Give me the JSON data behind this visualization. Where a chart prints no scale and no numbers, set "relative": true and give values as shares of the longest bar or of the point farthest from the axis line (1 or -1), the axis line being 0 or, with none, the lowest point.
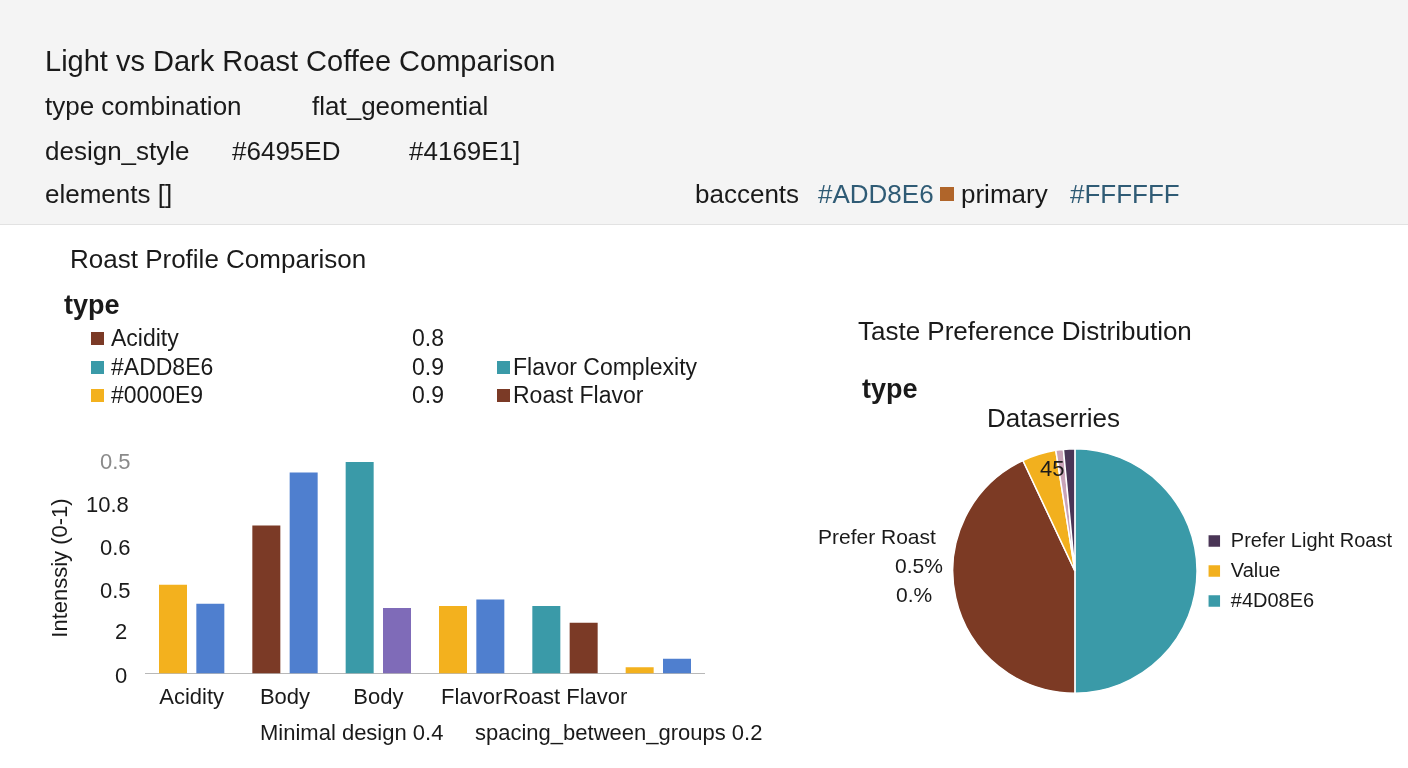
{
  "chart_data": [
    {
      "type": "other",
      "title": "Light vs Dark Roast Coffee Comparison",
      "annotations": [
        "type  combination",
        "flat_geomential",
        "design_style",
        "#6495ED",
        "#4169E1]",
        "elements []",
        "baccents",
        "#ADD8E6",
        "primary",
        "#FFFFFF"
      ]
    },
    {
      "type": "bar",
      "title": "Roast Profile Comparison",
      "ylabel": "Intenssiy (0-1)",
      "categories": [
        "Acidity",
        "Body",
        "Body",
        "Flavor",
        "Roast Flavor",
        null
      ],
      "series": [
        {
          "values": [
            0.42,
            0.7,
            1,
            0.32,
            0.32,
            0.03
          ],
          "colors": [
            "#f3b11e",
            "#7b3a26",
            "#3a9aa8",
            "#f3b11e",
            "#3a9aa8",
            "#f3b11e"
          ]
        },
        {
          "values": [
            0.33,
            0.95,
            0.31,
            0.35,
            0.24,
            0.07
          ],
          "colors": [
            "#4f7fcf",
            "#4f7fcf",
            "#7f6bb8",
            "#4f7fcf",
            "#7b3a26",
            "#4f7fcf"
          ]
        }
      ],
      "relative": true,
      "legend": false,
      "annotations": [
        "type",
        "Acidity",
        "0.8",
        "#ADD8E6",
        "0.9",
        "Flavor Complexity",
        "#0000E9",
        "0.9",
        "Roast Flavor",
        "Minimal design  0.4",
        "spacing_between_groups 0.2",
        "0.5",
        "10.8",
        "0.6",
        "0.5",
        "2",
        "0"
      ]
    },
    {
      "type": "pie",
      "title": "Taste Preference Distribution",
      "subtitle": "Dataserries",
      "categories": [
        "#4D08E6",
        null,
        "Value",
        null,
        "Prefer Light Roast"
      ],
      "values": [
        50,
        43,
        4.5,
        1,
        1.5
      ],
      "colors": [
        "#3a9aa8",
        "#7c3a24",
        "#f2b01e",
        "#c9a3b8",
        "#4a3556"
      ],
      "legend": "right",
      "annotations": [
        "type",
        "45",
        "Prefer Roast",
        "0.5%",
        "0.%"
      ]
    }
  ]
}
